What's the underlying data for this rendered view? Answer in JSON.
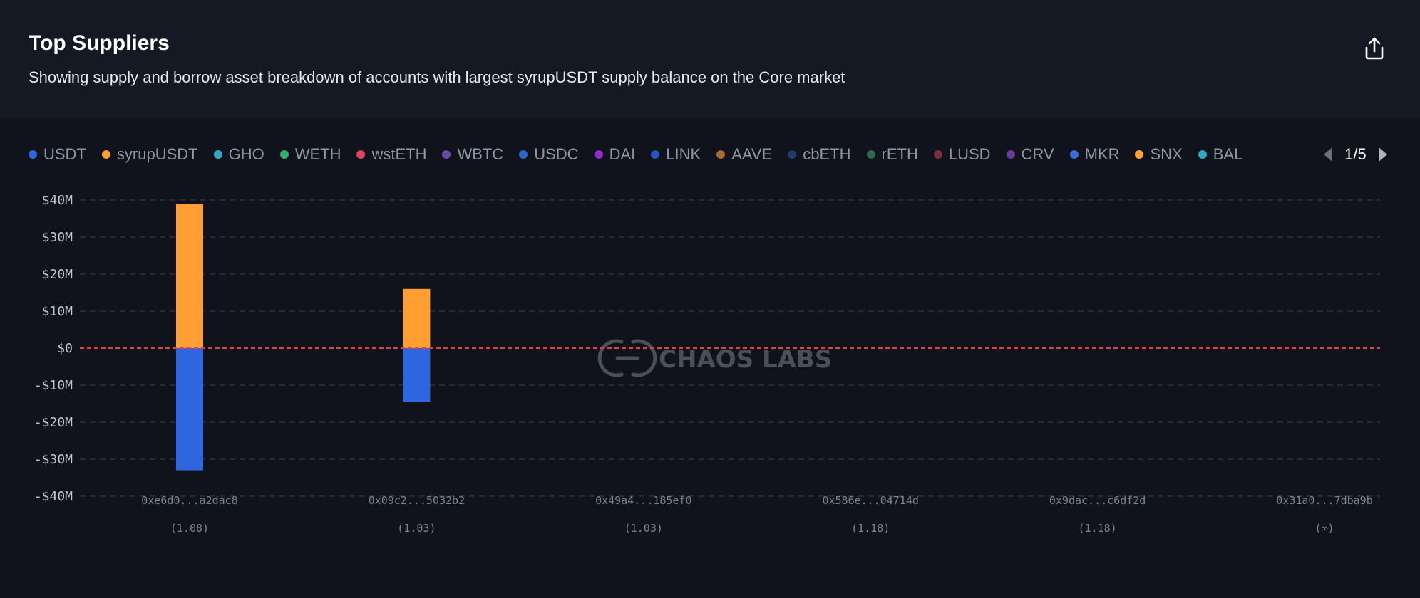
{
  "header": {
    "title": "Top Suppliers",
    "subtitle": "Showing supply and borrow asset breakdown of accounts with largest syrupUSDT supply balance on the Core market",
    "export_icon": "share-upload-icon"
  },
  "legend": {
    "items": [
      {
        "label": "USDT",
        "color": "#2f66e0"
      },
      {
        "label": "syrupUSDT",
        "color": "#ff9f33"
      },
      {
        "label": "GHO",
        "color": "#2fa8c4"
      },
      {
        "label": "WETH",
        "color": "#2fae6c"
      },
      {
        "label": "wstETH",
        "color": "#e0445c"
      },
      {
        "label": "WBTC",
        "color": "#6a4aa6"
      },
      {
        "label": "USDC",
        "color": "#2b63c8"
      },
      {
        "label": "DAI",
        "color": "#8e2ccf"
      },
      {
        "label": "LINK",
        "color": "#2a53c2"
      },
      {
        "label": "AAVE",
        "color": "#a8692a"
      },
      {
        "label": "cbETH",
        "color": "#1f3a6a"
      },
      {
        "label": "rETH",
        "color": "#2a6a4a"
      },
      {
        "label": "LUSD",
        "color": "#7a2e3c"
      },
      {
        "label": "CRV",
        "color": "#6a3a9a"
      },
      {
        "label": "MKR",
        "color": "#3a6ae0"
      },
      {
        "label": "SNX",
        "color": "#ff9f33"
      },
      {
        "label": "BAL",
        "color": "#2fa8c4"
      }
    ],
    "pager": {
      "text": "1/5",
      "prev_icon": "caret-left-icon",
      "next_icon": "caret-right-icon"
    }
  },
  "watermark": {
    "text": "CHAOS LABS"
  },
  "chart_data": {
    "type": "bar",
    "stacked": true,
    "categories": [
      "0xe6d0...a2dac8",
      "0x09c2...5032b2",
      "0x49a4...185ef0",
      "0x586e...04714d",
      "0x9dac...c6df2d",
      "0x31a0...7dba9b"
    ],
    "category_sublabels": [
      "(1.08)",
      "(1.03)",
      "(1.03)",
      "(1.18)",
      "(1.18)",
      "(∞)"
    ],
    "series": [
      {
        "name": "syrupUSDT",
        "color": "#ff9f33",
        "values": [
          39,
          16,
          0,
          0,
          0,
          0
        ]
      },
      {
        "name": "USDT",
        "color": "#2f66e0",
        "values": [
          -33,
          -14.5,
          0,
          0,
          0,
          0
        ]
      }
    ],
    "ylim": [
      -40,
      40
    ],
    "yticks": [
      40,
      30,
      20,
      10,
      0,
      -10,
      -20,
      -30,
      -40
    ],
    "ytick_labels": [
      "$40M",
      "$30M",
      "$20M",
      "$10M",
      "$0",
      "-$10M",
      "-$20M",
      "-$30M",
      "-$40M"
    ],
    "grid": true,
    "zero_line_color": "#e0443e"
  }
}
